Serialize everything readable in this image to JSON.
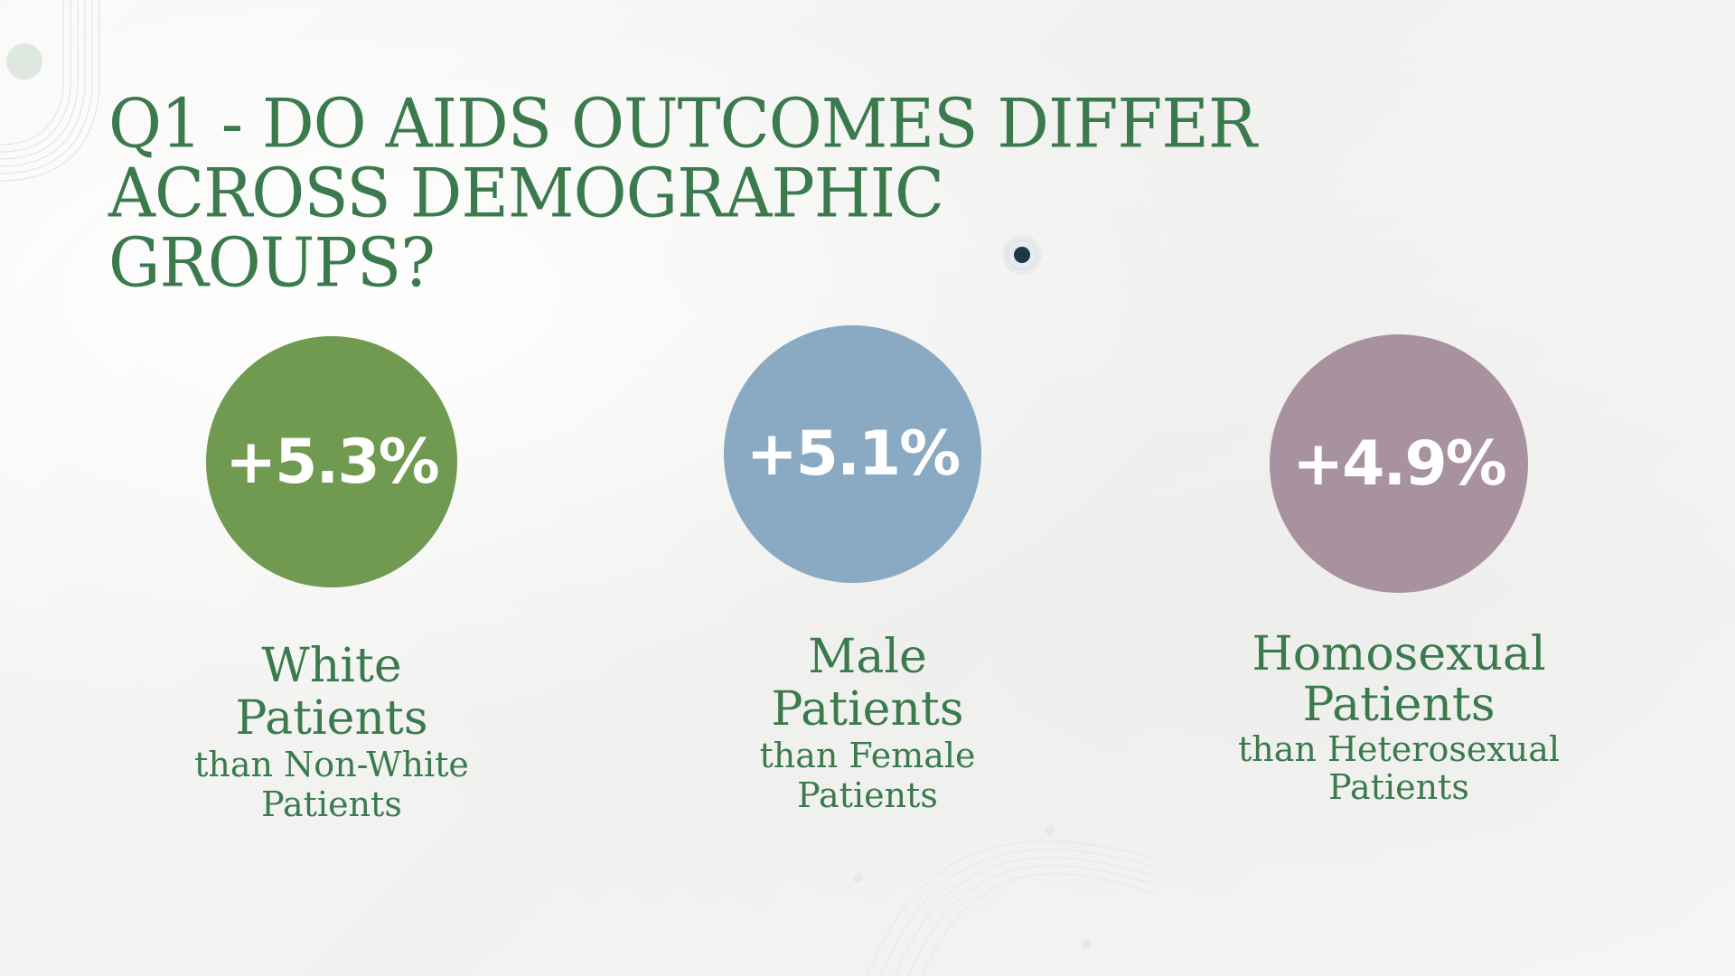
{
  "slide": {
    "title_line1": "Q1 - DO AIDS OUTCOMES DIFFER",
    "title_line2": "ACROSS DEMOGRAPHIC GROUPS?"
  },
  "stats": [
    {
      "value": "+5.3%",
      "color": "#6f9a50",
      "label_line1": "White",
      "label_line2": "Patients",
      "sub_line1": "than Non-White",
      "sub_line2": "Patients"
    },
    {
      "value": "+5.1%",
      "color": "#8aaac4",
      "label_line1": "Male",
      "label_line2": "Patients",
      "sub_line1": "than Female",
      "sub_line2": "Patients"
    },
    {
      "value": "+4.9%",
      "color": "#a8929f",
      "label_line1": "Homosexual",
      "label_line2": "Patients",
      "sub_line1": "than Heterosexual",
      "sub_line2": "Patients"
    }
  ],
  "theme": {
    "title_color": "#3b7a4d",
    "background": "#f6f6f5"
  }
}
